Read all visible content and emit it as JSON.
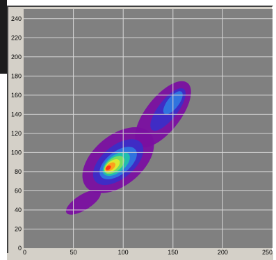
{
  "chart_data": {
    "type": "heatmap",
    "title": "",
    "xlabel": "",
    "ylabel": "",
    "x_ticks": [
      "0",
      "50",
      "100",
      "150",
      "200",
      "250"
    ],
    "y_ticks": [
      "0",
      "20",
      "40",
      "60",
      "80",
      "100",
      "120",
      "140",
      "160",
      "180",
      "200",
      "220",
      "240"
    ],
    "xlim": [
      0,
      250
    ],
    "ylim": [
      0,
      250
    ],
    "grid": true,
    "colormap": [
      "#7a0fa0",
      "#3a2fc8",
      "#2f7ae0",
      "#22c4a8",
      "#7ee05a",
      "#e6ea2e",
      "#ff9a1a",
      "#ff2a1a"
    ],
    "background_color": "#808080",
    "grid_color": "#d8d8d8",
    "density_regions": [
      {
        "cx": 95,
        "cy": 92,
        "sx": 42,
        "sy": 26,
        "angle_deg": 40,
        "level": 0
      },
      {
        "cx": 140,
        "cy": 140,
        "sx": 40,
        "sy": 18,
        "angle_deg": 52,
        "level": 0
      },
      {
        "cx": 60,
        "cy": 48,
        "sx": 20,
        "sy": 8,
        "angle_deg": 32,
        "level": 0
      },
      {
        "cx": 95,
        "cy": 90,
        "sx": 30,
        "sy": 17,
        "angle_deg": 40,
        "level": 1
      },
      {
        "cx": 145,
        "cy": 145,
        "sx": 26,
        "sy": 10,
        "angle_deg": 52,
        "level": 1
      },
      {
        "cx": 95,
        "cy": 89,
        "sx": 22,
        "sy": 12,
        "angle_deg": 38,
        "level": 2
      },
      {
        "cx": 150,
        "cy": 152,
        "sx": 14,
        "sy": 6,
        "angle_deg": 52,
        "level": 2
      },
      {
        "cx": 93,
        "cy": 88,
        "sx": 16,
        "sy": 9,
        "angle_deg": 38,
        "level": 3
      },
      {
        "cx": 91,
        "cy": 87,
        "sx": 12,
        "sy": 7,
        "angle_deg": 38,
        "level": 4
      },
      {
        "cx": 89,
        "cy": 86,
        "sx": 9,
        "sy": 5,
        "angle_deg": 38,
        "level": 5
      },
      {
        "cx": 87,
        "cy": 85,
        "sx": 6,
        "sy": 3.5,
        "angle_deg": 38,
        "level": 6
      },
      {
        "cx": 85,
        "cy": 84,
        "sx": 3,
        "sy": 2,
        "angle_deg": 38,
        "level": 7
      }
    ]
  }
}
